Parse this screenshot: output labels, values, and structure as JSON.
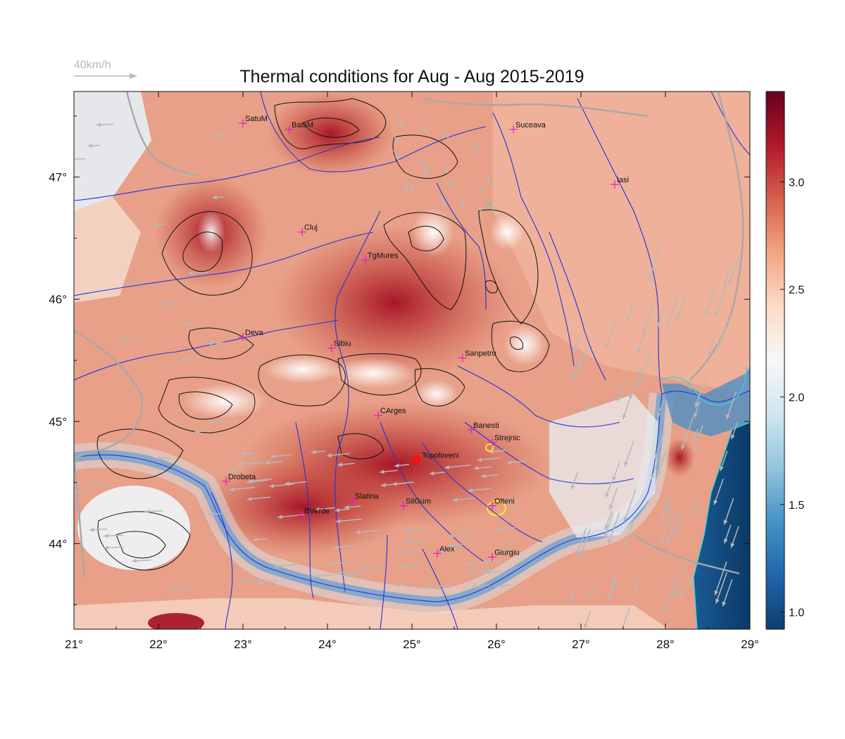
{
  "title": "Thermal conditions for Aug - Aug  2015-2019",
  "wind_scale": {
    "label": "40km/h",
    "color": "#b8b8b8"
  },
  "map": {
    "lon_range": [
      21,
      29
    ],
    "lat_range": [
      43.3,
      47.7
    ],
    "x_ticks": [
      "21°",
      "22°",
      "23°",
      "24°",
      "25°",
      "26°",
      "27°",
      "28°",
      "29°"
    ],
    "y_ticks": [
      "44°",
      "45°",
      "46°",
      "47°"
    ],
    "x_tick_values": [
      21,
      22,
      23,
      24,
      25,
      26,
      27,
      28,
      29
    ],
    "y_tick_values": [
      44,
      45,
      46,
      47
    ],
    "cities": [
      {
        "name": "SatuM",
        "lon": 23.0,
        "lat": 47.44
      },
      {
        "name": "BaiaM",
        "lon": 23.55,
        "lat": 47.39
      },
      {
        "name": "Suceava",
        "lon": 26.2,
        "lat": 47.39
      },
      {
        "name": "Iasi",
        "lon": 27.4,
        "lat": 46.94
      },
      {
        "name": "Cluj",
        "lon": 23.7,
        "lat": 46.55
      },
      {
        "name": "TgMures",
        "lon": 24.45,
        "lat": 46.32
      },
      {
        "name": "Deva",
        "lon": 23.0,
        "lat": 45.69
      },
      {
        "name": "Sibiu",
        "lon": 24.05,
        "lat": 45.6
      },
      {
        "name": "Sanpetru",
        "lon": 25.6,
        "lat": 45.52
      },
      {
        "name": "CArges",
        "lon": 24.6,
        "lat": 45.05
      },
      {
        "name": "Banesti",
        "lon": 25.7,
        "lat": 44.93
      },
      {
        "name": "Strejnic",
        "lon": 25.95,
        "lat": 44.83
      },
      {
        "name": "Drobeta",
        "lon": 22.8,
        "lat": 44.51
      },
      {
        "name": "Slatina",
        "lon": 24.3,
        "lat": 44.35
      },
      {
        "name": "SilGum",
        "lon": 24.9,
        "lat": 44.31
      },
      {
        "name": "Olteni",
        "lon": 25.95,
        "lat": 44.31
      },
      {
        "name": "BVerde",
        "lon": 23.7,
        "lat": 44.23
      },
      {
        "name": "Alex",
        "lon": 25.3,
        "lat": 43.92
      },
      {
        "name": "Giurgiu",
        "lon": 25.95,
        "lat": 43.89
      }
    ],
    "highlight_point": {
      "name": "Topoloveni",
      "lon": 25.05,
      "lat": 44.69,
      "color": "#ff1010"
    },
    "city_marker_color": "#e020c0"
  },
  "colorbar": {
    "min": 0.92,
    "max": 3.42,
    "ticks": [
      "1.0",
      "1.5",
      "2.0",
      "2.5",
      "3.0"
    ],
    "tick_values": [
      1.0,
      1.5,
      2.0,
      2.5,
      3.0
    ],
    "colors": [
      "#0d3e70",
      "#2166ac",
      "#4393c3",
      "#92c5de",
      "#d1e5f0",
      "#f7f7f7",
      "#fddbc7",
      "#f4a582",
      "#d6604d",
      "#b2182b",
      "#67001f"
    ]
  },
  "colors": {
    "rivers": "#2233dd",
    "contours": "#111111",
    "borders": "#a8a8a8",
    "coast": "#22dddd",
    "wind_arrows": "#b8b8b8"
  }
}
